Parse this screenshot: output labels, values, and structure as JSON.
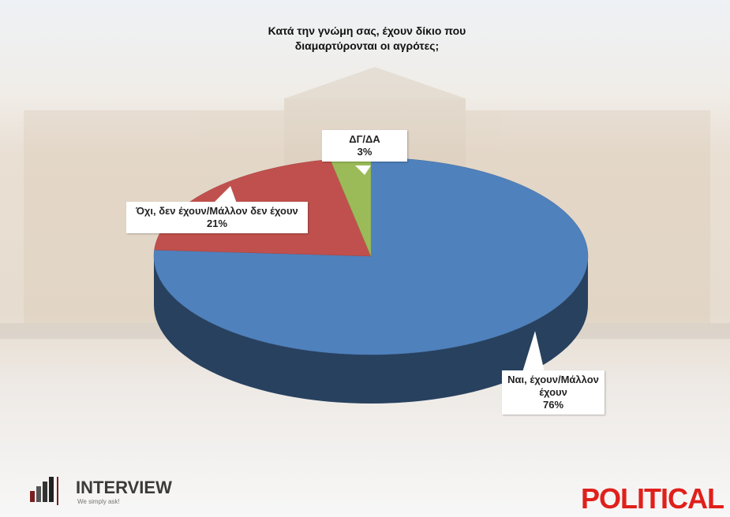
{
  "chart_data": {
    "type": "pie3d",
    "title": "Κατά την γνώμη σας, έχουν δίκιο που διαμαρτύρονται οι αγρότες;",
    "categories": [
      "Ναι, έχουν/Μάλλον έχουν",
      "Όχι, δεν έχουν/Μάλλον δεν έχουν",
      "ΔΓ/ΔΑ"
    ],
    "values": [
      76,
      21,
      3
    ],
    "value_labels": [
      "76%",
      "21%",
      "3%"
    ],
    "colors": [
      "#4f81bd",
      "#c0504d",
      "#9bbb59"
    ]
  },
  "logos": {
    "left": "INTERVIEW",
    "left_tagline": "We simply ask!",
    "right": "POLITICAL"
  }
}
